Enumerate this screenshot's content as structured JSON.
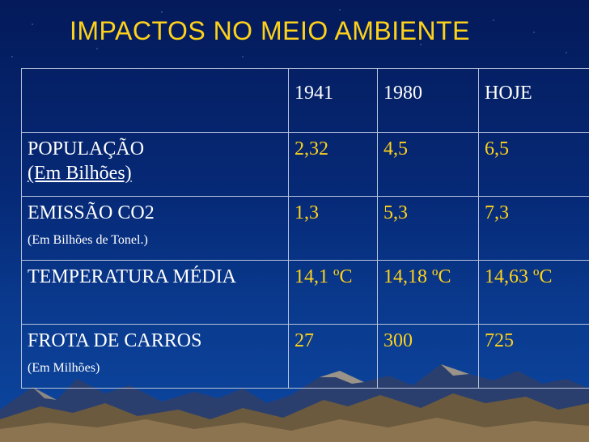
{
  "title": "IMPACTOS NO MEIO AMBIENTE",
  "colors": {
    "title": "#ffd21a",
    "values": "#ffd21a",
    "labels": "#ffffff",
    "background": "#062a78"
  },
  "table": {
    "headers": [
      "",
      "1941",
      "1980",
      "HOJE"
    ],
    "rows": [
      {
        "label": "POPULAÇÃO",
        "sublabel": "(Em Bilhões)",
        "values": [
          "2,32",
          "4,5",
          "6,5"
        ]
      },
      {
        "label": "EMISSÃO CO2",
        "sublabel": "(Em Bilhões de Tonel.)",
        "values": [
          "1,3",
          "5,3",
          "7,3"
        ]
      },
      {
        "label": "TEMPERATURA MÉDIA",
        "sublabel": "",
        "values": [
          "14,1 ºC",
          "14,18 ºC",
          "14,63 ºC"
        ]
      },
      {
        "label": "FROTA DE CARROS",
        "sublabel": "(Em Milhões)",
        "values": [
          "27",
          "300",
          "725"
        ]
      }
    ]
  }
}
